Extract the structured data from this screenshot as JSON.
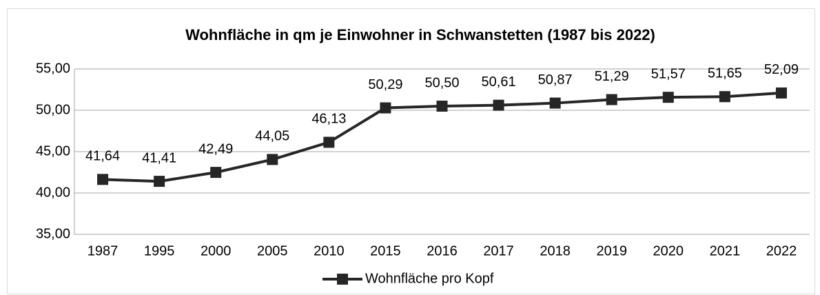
{
  "chart_data": {
    "type": "line",
    "title": "Wohnfläche in qm je Einwohner in Schwanstetten (1987 bis 2022)",
    "categories": [
      "1987",
      "1995",
      "2000",
      "2005",
      "2010",
      "2015",
      "2016",
      "2017",
      "2018",
      "2019",
      "2020",
      "2021",
      "2022"
    ],
    "series": [
      {
        "name": "Wohnfläche pro Kopf",
        "color": "#262626",
        "values": [
          41.64,
          41.41,
          42.49,
          44.05,
          46.13,
          50.29,
          50.5,
          50.61,
          50.87,
          51.29,
          51.57,
          51.65,
          52.09
        ],
        "value_labels": [
          "41,64",
          "41,41",
          "42,49",
          "44,05",
          "46,13",
          "50,29",
          "50,50",
          "50,61",
          "50,87",
          "51,29",
          "51,57",
          "51,65",
          "52,09"
        ]
      }
    ],
    "ylim": [
      35,
      55
    ],
    "yticks": [
      {
        "value": 35,
        "label": "35,00"
      },
      {
        "value": 40,
        "label": "40,00"
      },
      {
        "value": 45,
        "label": "45,00"
      },
      {
        "value": 50,
        "label": "50,00"
      },
      {
        "value": 55,
        "label": "55,00"
      }
    ],
    "grid": true,
    "legend": "bottom"
  }
}
